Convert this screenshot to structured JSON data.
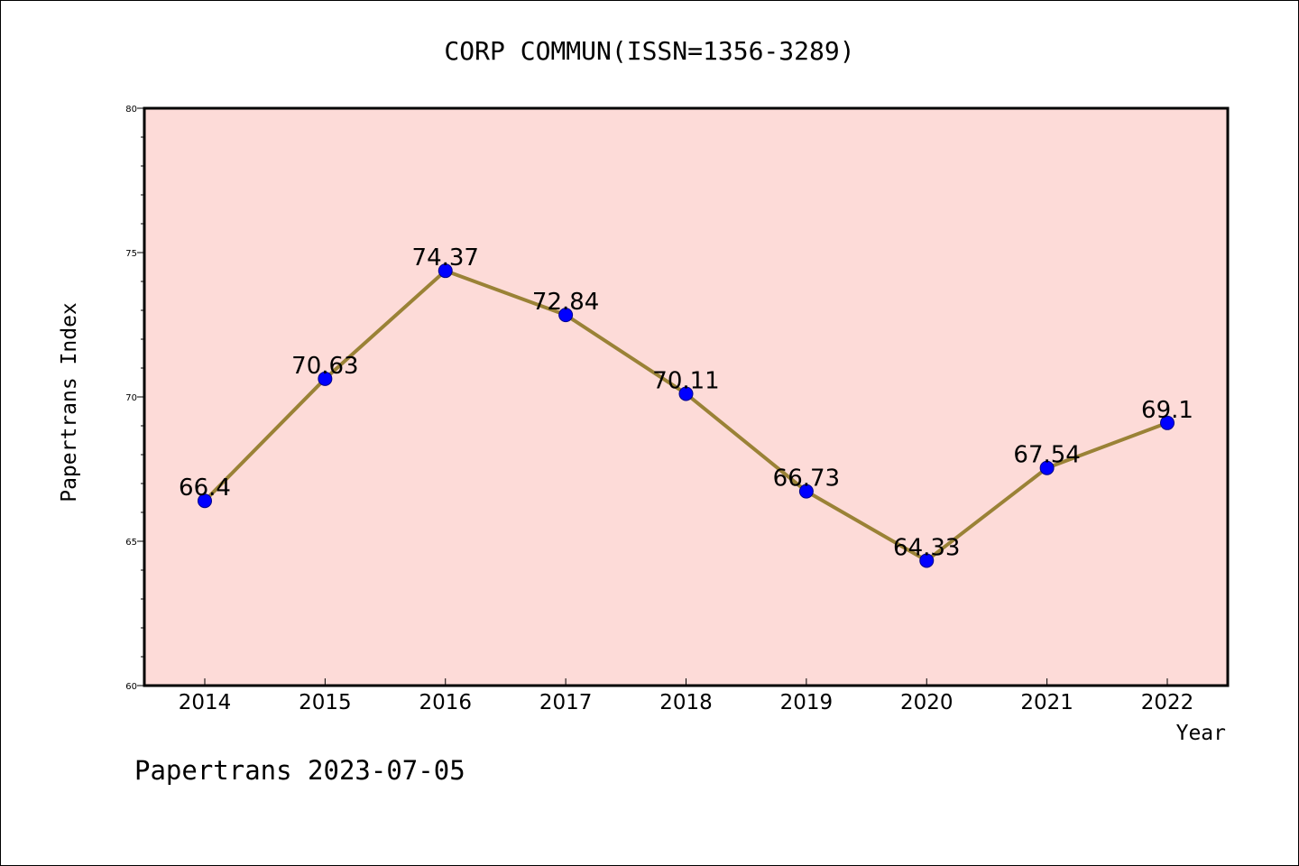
{
  "chart_data": {
    "type": "line",
    "title": "CORP COMMUN(ISSN=1356-3289)",
    "xlabel": "Year",
    "ylabel": "Papertrans Index",
    "categories": [
      "2014",
      "2015",
      "2016",
      "2017",
      "2018",
      "2019",
      "2020",
      "2021",
      "2022"
    ],
    "series": [
      {
        "values": [
          66.4,
          70.63,
          74.37,
          72.84,
          70.11,
          66.73,
          64.33,
          67.54,
          69.1
        ],
        "data_labels": [
          "66.4",
          "70.63",
          "74.37",
          "72.84",
          "70.11",
          "66.73",
          "64.33",
          "67.54",
          "69.1"
        ]
      }
    ],
    "ylim": [
      60,
      80
    ],
    "yticks": [
      60,
      65,
      70,
      75,
      80
    ],
    "grid": false,
    "legend": "none",
    "colors": {
      "plot_background": "#fddbd8",
      "line": "#9a8236",
      "marker": "#0000ff"
    }
  },
  "footer": {
    "text": "Papertrans 2023-07-05"
  }
}
